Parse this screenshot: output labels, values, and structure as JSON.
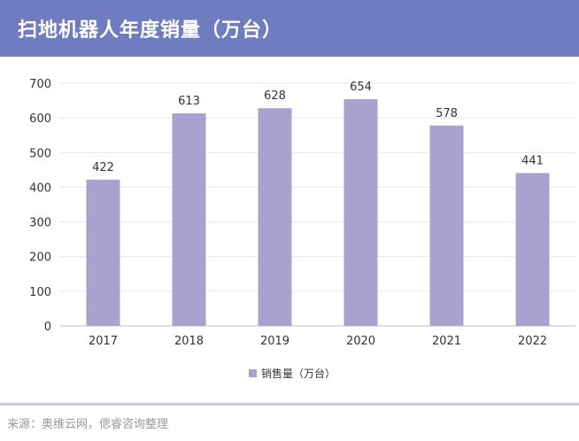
{
  "header": {
    "title": "扫地机器人年度销量（万台）"
  },
  "footer": {
    "source": "来源：奥维云网，偲睿咨询整理"
  },
  "colors": {
    "header_bg": "#6f7dc0",
    "bar": "#a9a2cf",
    "grid": "#e6e6e6"
  },
  "chart_data": {
    "type": "bar",
    "title": "扫地机器人年度销量（万台）",
    "categories": [
      "2017",
      "2018",
      "2019",
      "2020",
      "2021",
      "2022"
    ],
    "series": [
      {
        "name": "销售量（万台）",
        "values": [
          422,
          613,
          628,
          654,
          578,
          441
        ]
      }
    ],
    "xlabel": "",
    "ylabel": "",
    "ylim": [
      0,
      700
    ],
    "yticks": [
      0,
      100,
      200,
      300,
      400,
      500,
      600,
      700
    ],
    "grid": true,
    "legend": "bottom-center",
    "data_labels": true
  }
}
